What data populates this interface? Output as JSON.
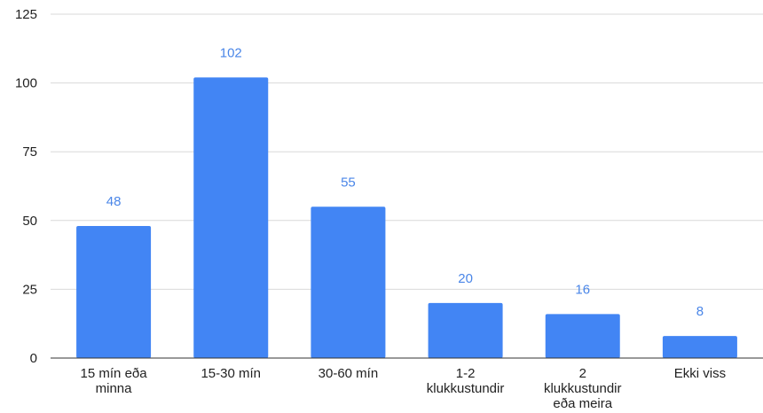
{
  "chart_data": {
    "type": "bar",
    "title": "",
    "xlabel": "",
    "ylabel": "",
    "ylim": [
      0,
      125
    ],
    "yticks": [
      0,
      25,
      50,
      75,
      100,
      125
    ],
    "grid": true,
    "legend": "none",
    "categories": [
      [
        "15 mín eða",
        "minna"
      ],
      [
        "15-30 mín"
      ],
      [
        "30-60 mín"
      ],
      [
        "1-2",
        "klukkustundir"
      ],
      [
        "2",
        "klukkustundir",
        "eða meira"
      ],
      [
        "Ekki viss"
      ]
    ],
    "series": [
      {
        "values": [
          48,
          102,
          55,
          20,
          16,
          8
        ]
      }
    ],
    "data_labels": [
      "48",
      "102",
      "55",
      "20",
      "16",
      "8"
    ],
    "colors": {
      "bar": "#4285f4",
      "data_label": "#4a86e8",
      "grid": "#d9d9d9",
      "axis": "#333333"
    }
  }
}
